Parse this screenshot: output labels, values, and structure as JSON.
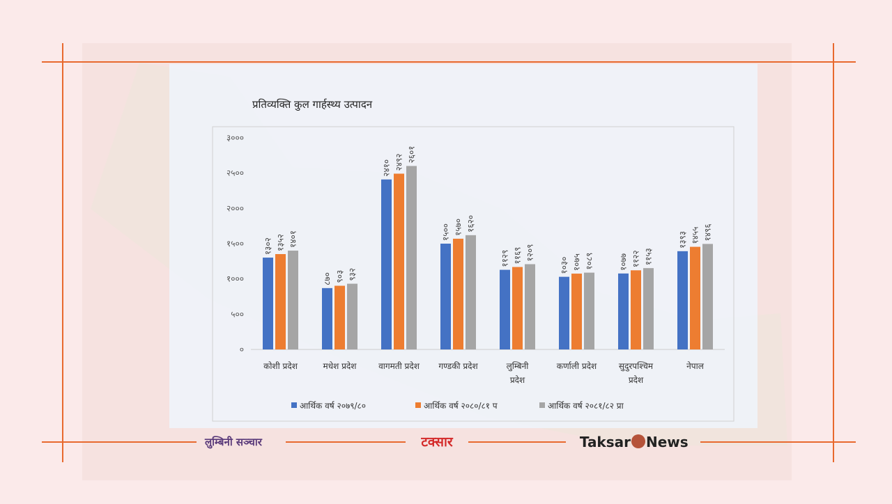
{
  "chart_data": {
    "type": "bar",
    "title": "प्रतिव्यक्ति कुल गार्हस्थ्य उत्पादन",
    "categories": [
      "कोशी प्रदेश",
      "मधेश प्रदेश",
      "वागमती प्रदेश",
      "गण्डकी प्रदेश",
      "लुम्बिनी प्रदेश",
      "कर्णाली प्रदेश",
      "सुदुरपश्चिम प्रदेश",
      "नेपाल"
    ],
    "series": [
      {
        "name": "आर्थिक वर्ष २०७९/८०",
        "color": "#4472c4",
        "values": [
          1302,
          870,
          2410,
          1500,
          1129,
          1030,
          1077,
          1393
        ],
        "value_labels": [
          "१३०२",
          "८७०",
          "२४१०",
          "१५००",
          "११२९",
          "१०३०",
          "१०७७",
          "१३९३"
        ]
      },
      {
        "name": "आर्थिक वर्ष २०८०/८१ प",
        "color": "#ed7d31",
        "values": [
          1352,
          903,
          2492,
          1570,
          1169,
          1075,
          1122,
          1455
        ],
        "value_labels": [
          "१३५२",
          "९०३",
          "२४९२",
          "१५७०",
          "११६९",
          "१०७५",
          "११२२",
          "१४५५"
        ]
      },
      {
        "name": "आर्थिक वर्ष २०८१/८२ प्रा",
        "color": "#a5a5a5",
        "values": [
          1401,
          932,
          2601,
          1620,
          1209,
          1089,
          1153,
          1496
        ],
        "value_labels": [
          "१४०१",
          "९३२",
          "२६०१",
          "१६२०",
          "१२०९",
          "१०८९",
          "११५३",
          "१४९६"
        ]
      }
    ],
    "ylim": [
      0,
      3000
    ],
    "yticks": [
      {
        "value": 0,
        "label": "०"
      },
      {
        "value": 500,
        "label": "५००"
      },
      {
        "value": 1000,
        "label": "१०००"
      },
      {
        "value": 1500,
        "label": "१५००"
      },
      {
        "value": 2000,
        "label": "२०००"
      },
      {
        "value": 2500,
        "label": "२५००"
      },
      {
        "value": 3000,
        "label": "३०००"
      }
    ],
    "grid": false,
    "legend": "bottom"
  },
  "logos": {
    "left": "लुम्बिनी सञ्चार",
    "center": "टक्सार",
    "right_a": "Taksar",
    "right_b": "News"
  }
}
